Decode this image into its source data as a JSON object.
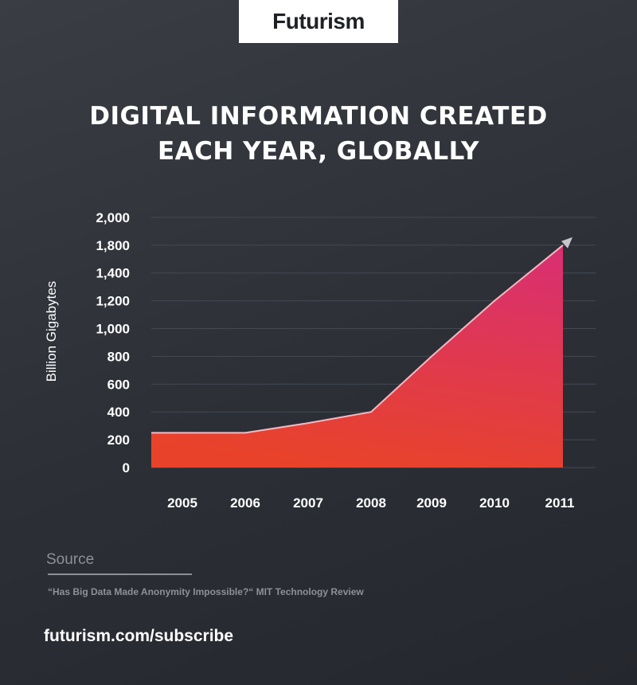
{
  "brand": {
    "logo_text": "Futurism"
  },
  "header": {
    "title_line1": "DIGITAL INFORMATION CREATED",
    "title_line2": "EACH YEAR, GLOBALLY"
  },
  "chart_data": {
    "type": "area",
    "title": "DIGITAL INFORMATION CREATED EACH YEAR, GLOBALLY",
    "xlabel": "",
    "ylabel": "Billion Gigabytes",
    "categories": [
      "2005",
      "2006",
      "2007",
      "2008",
      "2009",
      "2010",
      "2011"
    ],
    "values": [
      250,
      250,
      320,
      400,
      800,
      1200,
      1800
    ],
    "y_tick_labels": [
      "0",
      "200",
      "400",
      "600",
      "800",
      "1,000",
      "1,200",
      "1,400",
      "1,800",
      "2,000"
    ],
    "y_tick_values": [
      0,
      200,
      400,
      600,
      800,
      1000,
      1200,
      1400,
      1800,
      2000
    ],
    "ylim": [
      0,
      2000
    ],
    "grid": true,
    "end_marker": "arrow",
    "colors": {
      "fill_top": "#d9306f",
      "fill_bottom": "#e8432a",
      "line": "#f4b8c0",
      "arrow": "#c8c8cc",
      "grid": "#454850"
    }
  },
  "source": {
    "label": "Source",
    "text": "“Has Big Data Made Anonymity Impossible?“ MIT Technology Review"
  },
  "footer": {
    "subscribe": "futurism.com/subscribe"
  }
}
